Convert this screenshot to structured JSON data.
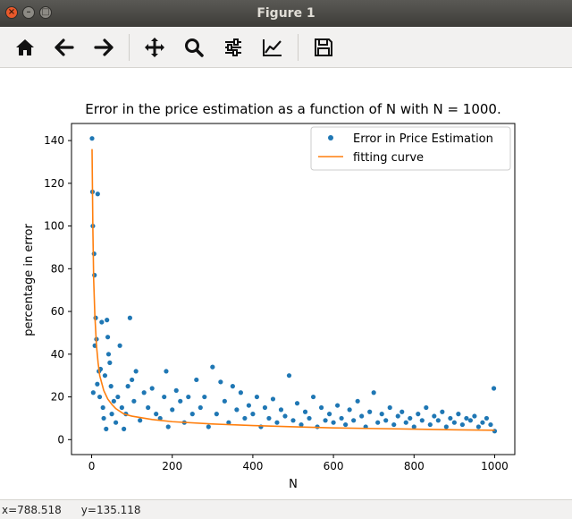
{
  "window": {
    "title": "Figure 1",
    "close_glyph": "×",
    "minimize_glyph": "–",
    "maximize_glyph": "□"
  },
  "toolbar": {
    "buttons": [
      {
        "name": "home",
        "icon": "home-icon"
      },
      {
        "name": "back",
        "icon": "arrow-left-icon"
      },
      {
        "name": "forward",
        "icon": "arrow-right-icon"
      },
      {
        "name": "pan",
        "icon": "move-icon"
      },
      {
        "name": "zoom",
        "icon": "zoom-icon"
      },
      {
        "name": "configure-subplots",
        "icon": "sliders-icon"
      },
      {
        "name": "edit-axes",
        "icon": "line-chart-icon"
      },
      {
        "name": "save",
        "icon": "save-icon"
      }
    ]
  },
  "status": {
    "x": "x=788.518",
    "y": "y=135.118"
  },
  "colors": {
    "scatter": "#1f77b4",
    "fit": "#ff7f0e"
  },
  "chart_data": {
    "type": "scatter",
    "title": "Error in the price estimation as a function of N with N = 1000.",
    "xlabel": "N",
    "ylabel": "percentage in error",
    "xlim": [
      -50,
      1050
    ],
    "ylim": [
      -7,
      148
    ],
    "xticks": [
      0,
      200,
      400,
      600,
      800,
      1000
    ],
    "yticks": [
      0,
      20,
      40,
      60,
      80,
      100,
      120,
      140
    ],
    "grid": false,
    "legend_position": "top-right",
    "legend": [
      "Error in Price Estimation",
      "fitting curve"
    ],
    "series": [
      {
        "name": "Error in Price Estimation",
        "style": "points",
        "points": [
          [
            1,
            141
          ],
          [
            2,
            116
          ],
          [
            3,
            100
          ],
          [
            4,
            22
          ],
          [
            6,
            87
          ],
          [
            7,
            77
          ],
          [
            8,
            44
          ],
          [
            10,
            57
          ],
          [
            12,
            47
          ],
          [
            15,
            115
          ],
          [
            14,
            26
          ],
          [
            18,
            32
          ],
          [
            20,
            20
          ],
          [
            22,
            33
          ],
          [
            25,
            55
          ],
          [
            28,
            15
          ],
          [
            30,
            10
          ],
          [
            33,
            30
          ],
          [
            36,
            5
          ],
          [
            38,
            56
          ],
          [
            40,
            48
          ],
          [
            42,
            40
          ],
          [
            45,
            36
          ],
          [
            48,
            25
          ],
          [
            50,
            12
          ],
          [
            55,
            18
          ],
          [
            60,
            8
          ],
          [
            65,
            20
          ],
          [
            70,
            44
          ],
          [
            75,
            15
          ],
          [
            80,
            5
          ],
          [
            85,
            12
          ],
          [
            90,
            25
          ],
          [
            95,
            57
          ],
          [
            100,
            28
          ],
          [
            105,
            18
          ],
          [
            110,
            32
          ],
          [
            120,
            9
          ],
          [
            130,
            22
          ],
          [
            140,
            15
          ],
          [
            150,
            24
          ],
          [
            160,
            12
          ],
          [
            170,
            10
          ],
          [
            180,
            20
          ],
          [
            185,
            32
          ],
          [
            190,
            6
          ],
          [
            200,
            14
          ],
          [
            210,
            23
          ],
          [
            220,
            18
          ],
          [
            230,
            8
          ],
          [
            240,
            20
          ],
          [
            250,
            12
          ],
          [
            260,
            28
          ],
          [
            270,
            15
          ],
          [
            280,
            20
          ],
          [
            290,
            6
          ],
          [
            300,
            34
          ],
          [
            310,
            12
          ],
          [
            320,
            27
          ],
          [
            330,
            18
          ],
          [
            340,
            8
          ],
          [
            350,
            25
          ],
          [
            360,
            14
          ],
          [
            370,
            22
          ],
          [
            380,
            10
          ],
          [
            390,
            16
          ],
          [
            400,
            12
          ],
          [
            410,
            20
          ],
          [
            420,
            6
          ],
          [
            430,
            15
          ],
          [
            440,
            10
          ],
          [
            450,
            19
          ],
          [
            460,
            8
          ],
          [
            470,
            14
          ],
          [
            480,
            11
          ],
          [
            490,
            30
          ],
          [
            500,
            9
          ],
          [
            510,
            17
          ],
          [
            520,
            7
          ],
          [
            530,
            13
          ],
          [
            540,
            10
          ],
          [
            550,
            20
          ],
          [
            560,
            6
          ],
          [
            570,
            15
          ],
          [
            580,
            9
          ],
          [
            590,
            12
          ],
          [
            600,
            8
          ],
          [
            610,
            16
          ],
          [
            620,
            10
          ],
          [
            630,
            7
          ],
          [
            640,
            14
          ],
          [
            650,
            9
          ],
          [
            660,
            18
          ],
          [
            670,
            11
          ],
          [
            680,
            6
          ],
          [
            690,
            13
          ],
          [
            700,
            22
          ],
          [
            710,
            8
          ],
          [
            720,
            12
          ],
          [
            730,
            9
          ],
          [
            740,
            15
          ],
          [
            750,
            7
          ],
          [
            760,
            11
          ],
          [
            770,
            13
          ],
          [
            780,
            8
          ],
          [
            790,
            10
          ],
          [
            800,
            6
          ],
          [
            810,
            12
          ],
          [
            820,
            9
          ],
          [
            830,
            15
          ],
          [
            840,
            7
          ],
          [
            850,
            11
          ],
          [
            860,
            9
          ],
          [
            870,
            13
          ],
          [
            880,
            6
          ],
          [
            890,
            10
          ],
          [
            900,
            8
          ],
          [
            910,
            12
          ],
          [
            920,
            7
          ],
          [
            930,
            10
          ],
          [
            940,
            9
          ],
          [
            950,
            11
          ],
          [
            960,
            6
          ],
          [
            970,
            8
          ],
          [
            980,
            10
          ],
          [
            990,
            7
          ],
          [
            998,
            24
          ],
          [
            1000,
            4
          ]
        ]
      },
      {
        "name": "fitting curve",
        "style": "line",
        "points": [
          [
            1,
            136
          ],
          [
            3,
            99
          ],
          [
            5,
            75
          ],
          [
            8,
            58
          ],
          [
            12,
            44
          ],
          [
            16,
            36
          ],
          [
            20,
            30
          ],
          [
            30,
            23
          ],
          [
            40,
            19
          ],
          [
            50,
            16.5
          ],
          [
            60,
            14.5
          ],
          [
            80,
            12
          ],
          [
            100,
            11
          ],
          [
            150,
            9.4
          ],
          [
            200,
            8.4
          ],
          [
            300,
            7.3
          ],
          [
            400,
            6.6
          ],
          [
            500,
            6.0
          ],
          [
            600,
            5.5
          ],
          [
            700,
            5.2
          ],
          [
            800,
            4.9
          ],
          [
            900,
            4.6
          ],
          [
            1000,
            4.4
          ]
        ]
      }
    ]
  }
}
